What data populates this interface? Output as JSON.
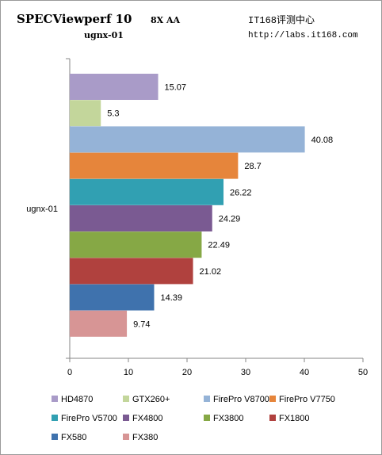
{
  "header": {
    "title": "SPECViewperf 10",
    "title_suffix": "8X AA",
    "subtitle": "ugnx-01",
    "source_name": "IT168评测中心",
    "source_url": "http://labs.it168.com"
  },
  "chart_data": {
    "type": "bar",
    "orientation": "horizontal",
    "title": "SPECViewperf 10 8X AA",
    "subtitle": "ugnx-01",
    "categories": [
      "ugnx-01"
    ],
    "xlim": [
      0,
      50
    ],
    "xticks": [
      0,
      10,
      20,
      30,
      40,
      50
    ],
    "xtick_labels": [
      "0",
      "10",
      "20",
      "30",
      "40",
      "50"
    ],
    "grid": false,
    "legend_position": "bottom",
    "series": [
      {
        "name": "HD4870",
        "value": 15.07,
        "label": "15.07",
        "color": "#a99bc8"
      },
      {
        "name": "GTX260+",
        "value": 5.3,
        "label": "5.3",
        "color": "#c3d69b"
      },
      {
        "name": "FirePro V8700",
        "value": 40.08,
        "label": "40.08",
        "color": "#95b3d7"
      },
      {
        "name": "FirePro V7750",
        "value": 28.7,
        "label": "28.7",
        "color": "#e6853b"
      },
      {
        "name": "FirePro V5700",
        "value": 26.22,
        "label": "26.22",
        "color": "#31a0b2"
      },
      {
        "name": "FX4800",
        "value": 24.29,
        "label": "24.29",
        "color": "#7a5a92"
      },
      {
        "name": "FX3800",
        "value": 22.49,
        "label": "22.49",
        "color": "#86a845"
      },
      {
        "name": "FX1800",
        "value": 21.02,
        "label": "21.02",
        "color": "#b0413e"
      },
      {
        "name": "FX580",
        "value": 14.39,
        "label": "14.39",
        "color": "#3f72ad"
      },
      {
        "name": "FX380",
        "value": 9.74,
        "label": "9.74",
        "color": "#d79595"
      }
    ]
  }
}
